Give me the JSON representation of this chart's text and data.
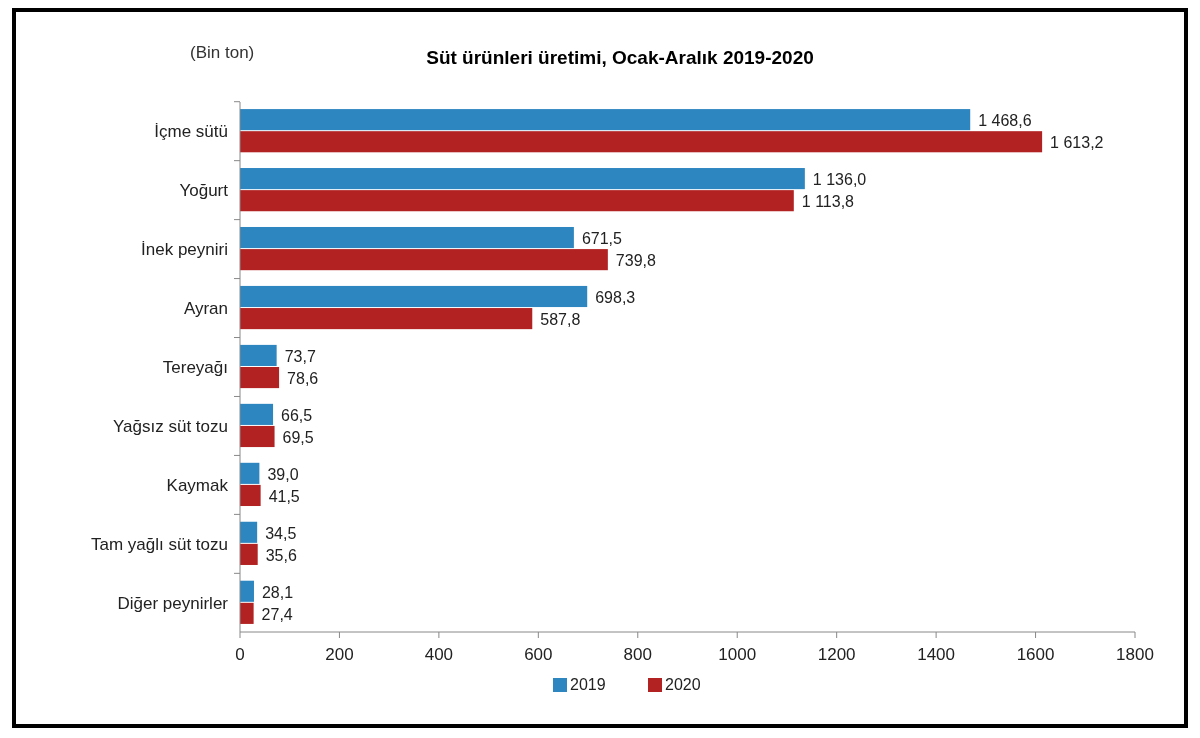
{
  "chart_data": {
    "type": "bar",
    "orientation": "horizontal",
    "title": "Süt ürünleri üretimi, Ocak-Aralık 2019-2020",
    "annotations": [
      "(Bin ton)"
    ],
    "categories": [
      "İçme sütü",
      "Yoğurt",
      "İnek peyniri",
      "Ayran",
      "Tereyağı",
      "Yağsız süt tozu",
      "Kaymak",
      "Tam yağlı süt tozu",
      "Diğer peynirler"
    ],
    "series": [
      {
        "name": "2019",
        "color": "#2e86c1",
        "values": [
          1468.6,
          1136.0,
          671.5,
          698.3,
          73.7,
          66.5,
          39.0,
          34.5,
          28.1
        ],
        "value_labels": [
          "1 468,6",
          "1 136,0",
          "671,5",
          "698,3",
          "73,7",
          "66,5",
          "39,0",
          "34,5",
          "28,1"
        ]
      },
      {
        "name": "2020",
        "color": "#b22222",
        "values": [
          1613.2,
          1113.8,
          739.8,
          587.8,
          78.6,
          69.5,
          41.5,
          35.6,
          27.4
        ],
        "value_labels": [
          "1 613,2",
          "1 113,8",
          "739,8",
          "587,8",
          "78,6",
          "69,5",
          "41,5",
          "35,6",
          "27,4"
        ]
      }
    ],
    "xlim": [
      0,
      1800
    ],
    "xticks": [
      0,
      200,
      400,
      600,
      800,
      1000,
      1200,
      1400,
      1600,
      1800
    ],
    "grid": false,
    "legend": "bottom"
  }
}
